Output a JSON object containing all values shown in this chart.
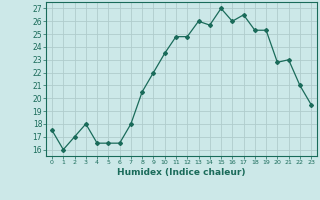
{
  "x": [
    0,
    1,
    2,
    3,
    4,
    5,
    6,
    7,
    8,
    9,
    10,
    11,
    12,
    13,
    14,
    15,
    16,
    17,
    18,
    19,
    20,
    21,
    22,
    23
  ],
  "y": [
    17.5,
    16.0,
    17.0,
    18.0,
    16.5,
    16.5,
    16.5,
    18.0,
    20.5,
    22.0,
    23.5,
    24.8,
    24.8,
    26.0,
    25.7,
    27.0,
    26.0,
    26.5,
    25.3,
    25.3,
    22.8,
    23.0,
    21.0,
    19.5
  ],
  "xlabel": "Humidex (Indice chaleur)",
  "ylim": [
    15.5,
    27.5
  ],
  "xlim": [
    -0.5,
    23.5
  ],
  "yticks": [
    16,
    17,
    18,
    19,
    20,
    21,
    22,
    23,
    24,
    25,
    26,
    27
  ],
  "xticks": [
    0,
    1,
    2,
    3,
    4,
    5,
    6,
    7,
    8,
    9,
    10,
    11,
    12,
    13,
    14,
    15,
    16,
    17,
    18,
    19,
    20,
    21,
    22,
    23
  ],
  "line_color": "#1a6b5a",
  "marker": "D",
  "marker_size": 2,
  "bg_color": "#cce8e8",
  "grid_color": "#b0cccc",
  "axes_color": "#1a6b5a"
}
